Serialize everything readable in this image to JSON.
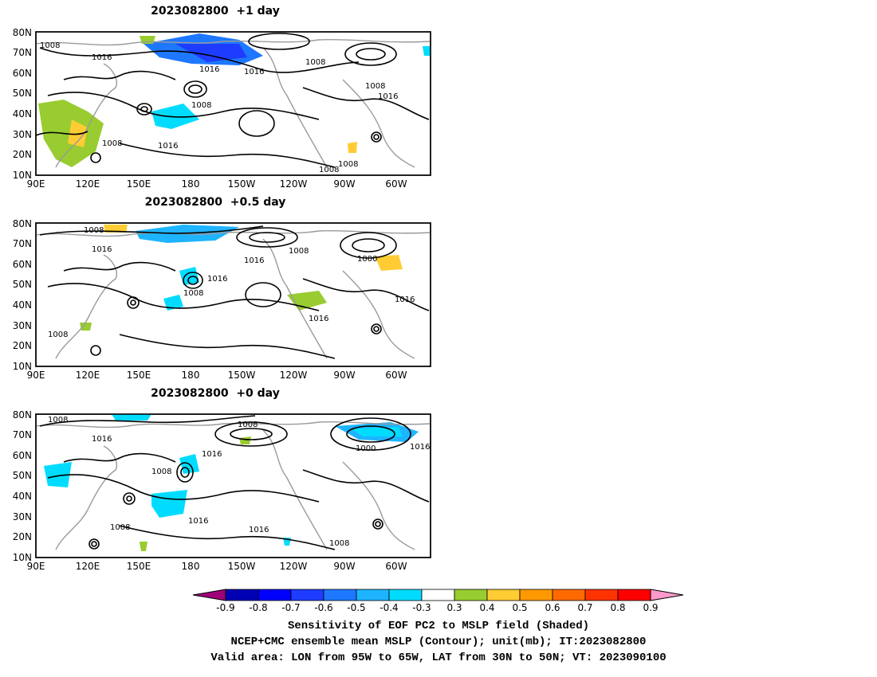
{
  "panels": [
    {
      "title": "2023082800  +1 day",
      "lat_labels": [
        "80N",
        "70N",
        "60N",
        "50N",
        "40N",
        "30N",
        "20N",
        "10N"
      ],
      "lon_labels": [
        "90E",
        "120E",
        "150E",
        "180",
        "150W",
        "120W",
        "90W",
        "60W"
      ],
      "contour_labels": [
        "1008",
        "1016",
        "1008",
        "1016",
        "1016",
        "1008",
        "1008",
        "1016",
        "1008",
        "1016",
        "1008",
        "1008"
      ]
    },
    {
      "title": "2023082800  +0.5 day",
      "lat_labels": [
        "80N",
        "70N",
        "60N",
        "50N",
        "40N",
        "30N",
        "20N",
        "10N"
      ],
      "lon_labels": [
        "90E",
        "120E",
        "150E",
        "180",
        "150W",
        "120W",
        "90W",
        "60W"
      ],
      "contour_labels": [
        "1008",
        "1016",
        "1016",
        "1008",
        "1016",
        "1008",
        "1000",
        "1016",
        "1016",
        "1008"
      ]
    },
    {
      "title": "2023082800  +0 day",
      "lat_labels": [
        "80N",
        "70N",
        "60N",
        "50N",
        "40N",
        "30N",
        "20N",
        "10N"
      ],
      "lon_labels": [
        "90E",
        "120E",
        "150E",
        "180",
        "150W",
        "120W",
        "90W",
        "60W"
      ],
      "contour_labels": [
        "1008",
        "1016",
        "1016",
        "1008",
        "1008",
        "1000",
        "1016",
        "1008",
        "1016",
        "1016",
        "1008"
      ]
    }
  ],
  "colorbar": {
    "ticks": [
      "-0.9",
      "-0.8",
      "-0.7",
      "-0.6",
      "-0.5",
      "-0.4",
      "-0.3",
      "0.3",
      "0.4",
      "0.5",
      "0.6",
      "0.7",
      "0.8",
      "0.9"
    ],
    "colors": [
      "#a0007a",
      "#0000b4",
      "#0000ff",
      "#1e3cff",
      "#1e78ff",
      "#1eb4ff",
      "#00dcff",
      "#00f0ff",
      "#ffffff",
      "#98cc30",
      "#ffcc33",
      "#ff9900",
      "#ff6a00",
      "#ff3300",
      "#ff0000",
      "#ff99cc"
    ]
  },
  "caption": {
    "line1": "Sensitivity of EOF PC2 to MSLP field (Shaded)",
    "line2": "NCEP+CMC ensemble mean MSLP (Contour); unit(mb); IT:2023082800",
    "line3": "Valid area: LON from 95W to 65W, LAT from 30N to 50N; VT: 2023090100"
  }
}
